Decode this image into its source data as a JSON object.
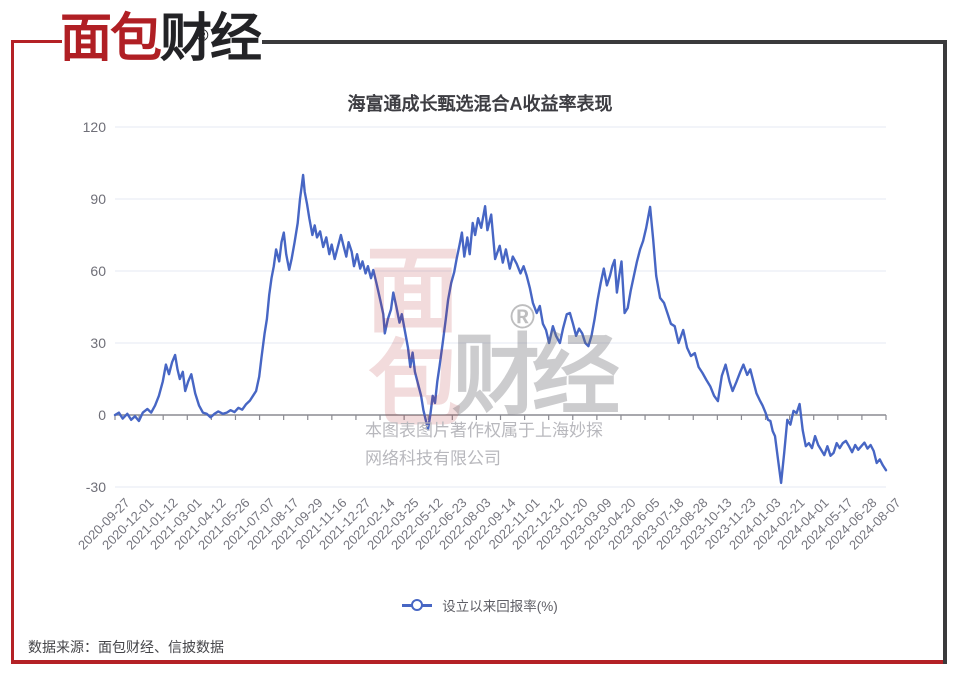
{
  "logo": {
    "text_main": "面包",
    "text_sub": "财经",
    "registered_mark": "®"
  },
  "frame": {
    "accent_red": "#b42126",
    "border_dark": "#3a3a3c"
  },
  "watermark": {
    "logo_top": "面",
    "logo_bottom": "包",
    "logo_right": "财经",
    "registered_mark": "®",
    "copyright_line1": "本图表图片著作权属于上海妙探",
    "copyright_line2": "网络科技有限公司"
  },
  "footer": {
    "source_text": "数据来源：面包财经、信披数据"
  },
  "chart_data": {
    "type": "line",
    "title": "海富通成长甄选混合A收益率表现",
    "legend": {
      "label": "设立以来回报率(%)",
      "position": "bottom"
    },
    "line_color": "#4766c4",
    "grid_color": "#e4e9f3",
    "axis_color": "#8b8b92",
    "grid": true,
    "ylim": [
      -30,
      120
    ],
    "y_ticks": [
      120,
      90,
      60,
      30,
      0,
      -30
    ],
    "x_tick_labels": [
      "2020-09-27",
      "2020-12-01",
      "2021-01-12",
      "2021-03-01",
      "2021-04-12",
      "2021-05-26",
      "2021-07-07",
      "2021-08-17",
      "2021-09-29",
      "2021-11-16",
      "2021-12-27",
      "2022-02-14",
      "2022-03-25",
      "2022-05-12",
      "2022-06-23",
      "2022-08-03",
      "2022-09-14",
      "2022-11-01",
      "2022-12-12",
      "2023-01-20",
      "2023-03-09",
      "2023-04-20",
      "2023-06-05",
      "2023-07-18",
      "2023-08-28",
      "2023-10-13",
      "2023-11-23",
      "2024-01-03",
      "2024-02-21",
      "2024-04-01",
      "2024-05-17",
      "2024-06-28",
      "2024-08-07"
    ],
    "series": [
      {
        "name": "设立以来回报率(%)",
        "x_unit": "fraction_of_axis",
        "points": [
          [
            0.0,
            0
          ],
          [
            0.005,
            1
          ],
          [
            0.01,
            -1.5
          ],
          [
            0.016,
            0.5
          ],
          [
            0.021,
            -2
          ],
          [
            0.026,
            -0.5
          ],
          [
            0.031,
            -2.5
          ],
          [
            0.036,
            1
          ],
          [
            0.042,
            2.5
          ],
          [
            0.047,
            1
          ],
          [
            0.052,
            4
          ],
          [
            0.057,
            8
          ],
          [
            0.062,
            14
          ],
          [
            0.066,
            21
          ],
          [
            0.07,
            17
          ],
          [
            0.074,
            22
          ],
          [
            0.078,
            25
          ],
          [
            0.081,
            19
          ],
          [
            0.084,
            15
          ],
          [
            0.088,
            18
          ],
          [
            0.091,
            10
          ],
          [
            0.095,
            14
          ],
          [
            0.099,
            17
          ],
          [
            0.104,
            9
          ],
          [
            0.109,
            4
          ],
          [
            0.114,
            1
          ],
          [
            0.119,
            0.5
          ],
          [
            0.124,
            -1
          ],
          [
            0.129,
            0.5
          ],
          [
            0.134,
            1.5
          ],
          [
            0.14,
            0.5
          ],
          [
            0.145,
            1
          ],
          [
            0.15,
            2
          ],
          [
            0.155,
            1.2
          ],
          [
            0.16,
            3
          ],
          [
            0.165,
            2.2
          ],
          [
            0.17,
            4.5
          ],
          [
            0.175,
            6
          ],
          [
            0.179,
            8
          ],
          [
            0.183,
            10
          ],
          [
            0.187,
            16
          ],
          [
            0.19,
            24
          ],
          [
            0.194,
            34
          ],
          [
            0.197,
            40
          ],
          [
            0.2,
            50
          ],
          [
            0.203,
            57
          ],
          [
            0.206,
            62
          ],
          [
            0.209,
            69
          ],
          [
            0.213,
            64
          ],
          [
            0.216,
            72
          ],
          [
            0.219,
            76
          ],
          [
            0.222,
            67
          ],
          [
            0.226,
            60.5
          ],
          [
            0.229,
            65
          ],
          [
            0.233,
            72
          ],
          [
            0.237,
            80
          ],
          [
            0.24,
            90
          ],
          [
            0.242,
            95
          ],
          [
            0.244,
            100
          ],
          [
            0.246,
            93
          ],
          [
            0.249,
            88
          ],
          [
            0.252,
            82
          ],
          [
            0.256,
            75
          ],
          [
            0.259,
            79
          ],
          [
            0.262,
            74
          ],
          [
            0.266,
            76.5
          ],
          [
            0.27,
            70
          ],
          [
            0.274,
            74
          ],
          [
            0.278,
            67
          ],
          [
            0.281,
            71
          ],
          [
            0.285,
            65
          ],
          [
            0.289,
            70
          ],
          [
            0.293,
            75
          ],
          [
            0.296,
            71
          ],
          [
            0.3,
            66
          ],
          [
            0.303,
            72
          ],
          [
            0.307,
            68
          ],
          [
            0.31,
            62
          ],
          [
            0.314,
            67
          ],
          [
            0.318,
            61
          ],
          [
            0.321,
            64
          ],
          [
            0.325,
            59
          ],
          [
            0.328,
            62
          ],
          [
            0.332,
            57
          ],
          [
            0.335,
            60.4
          ],
          [
            0.339,
            55
          ],
          [
            0.344,
            48
          ],
          [
            0.348,
            42
          ],
          [
            0.35,
            34
          ],
          [
            0.354,
            40
          ],
          [
            0.358,
            44
          ],
          [
            0.361,
            51
          ],
          [
            0.365,
            45
          ],
          [
            0.369,
            38.5
          ],
          [
            0.372,
            42
          ],
          [
            0.376,
            35
          ],
          [
            0.38,
            28
          ],
          [
            0.383,
            20
          ],
          [
            0.386,
            26
          ],
          [
            0.389,
            18
          ],
          [
            0.393,
            13
          ],
          [
            0.397,
            8
          ],
          [
            0.4,
            2
          ],
          [
            0.403,
            -2
          ],
          [
            0.406,
            -6
          ],
          [
            0.409,
            0
          ],
          [
            0.412,
            8
          ],
          [
            0.415,
            5
          ],
          [
            0.418,
            14
          ],
          [
            0.421,
            20.5
          ],
          [
            0.425,
            30
          ],
          [
            0.429,
            40
          ],
          [
            0.432,
            48
          ],
          [
            0.436,
            55
          ],
          [
            0.44,
            59.5
          ],
          [
            0.443,
            65
          ],
          [
            0.447,
            71
          ],
          [
            0.45,
            76
          ],
          [
            0.453,
            66
          ],
          [
            0.457,
            74
          ],
          [
            0.46,
            67
          ],
          [
            0.464,
            80
          ],
          [
            0.467,
            75
          ],
          [
            0.471,
            82
          ],
          [
            0.475,
            78
          ],
          [
            0.48,
            87
          ],
          [
            0.483,
            77
          ],
          [
            0.488,
            83.5
          ],
          [
            0.493,
            65
          ],
          [
            0.499,
            70.5
          ],
          [
            0.503,
            63.5
          ],
          [
            0.507,
            69
          ],
          [
            0.512,
            61
          ],
          [
            0.516,
            66
          ],
          [
            0.521,
            63
          ],
          [
            0.526,
            59
          ],
          [
            0.53,
            62
          ],
          [
            0.534,
            58
          ],
          [
            0.538,
            53
          ],
          [
            0.542,
            46.7
          ],
          [
            0.547,
            42.5
          ],
          [
            0.551,
            45.4
          ],
          [
            0.555,
            38
          ],
          [
            0.559,
            35.4
          ],
          [
            0.563,
            30
          ],
          [
            0.568,
            37
          ],
          [
            0.572,
            33
          ],
          [
            0.577,
            30
          ],
          [
            0.581,
            36
          ],
          [
            0.586,
            42
          ],
          [
            0.59,
            42.5
          ],
          [
            0.594,
            38
          ],
          [
            0.598,
            33
          ],
          [
            0.602,
            36
          ],
          [
            0.606,
            34
          ],
          [
            0.61,
            30
          ],
          [
            0.614,
            28.7
          ],
          [
            0.618,
            33
          ],
          [
            0.622,
            40
          ],
          [
            0.626,
            48
          ],
          [
            0.63,
            55
          ],
          [
            0.634,
            61
          ],
          [
            0.638,
            54
          ],
          [
            0.642,
            58
          ],
          [
            0.645,
            62
          ],
          [
            0.648,
            64.6
          ],
          [
            0.651,
            51
          ],
          [
            0.654,
            58
          ],
          [
            0.657,
            64
          ],
          [
            0.661,
            42.5
          ],
          [
            0.665,
            44.6
          ],
          [
            0.669,
            52
          ],
          [
            0.673,
            58
          ],
          [
            0.677,
            64
          ],
          [
            0.681,
            69
          ],
          [
            0.685,
            72.5
          ],
          [
            0.689,
            78
          ],
          [
            0.694,
            86.7
          ],
          [
            0.698,
            73
          ],
          [
            0.702,
            58
          ],
          [
            0.707,
            48.8
          ],
          [
            0.712,
            46.7
          ],
          [
            0.717,
            42
          ],
          [
            0.721,
            38
          ],
          [
            0.726,
            37
          ],
          [
            0.731,
            30
          ],
          [
            0.737,
            35.4
          ],
          [
            0.742,
            28
          ],
          [
            0.747,
            24.6
          ],
          [
            0.752,
            25.8
          ],
          [
            0.757,
            20
          ],
          [
            0.762,
            17.5
          ],
          [
            0.767,
            14.6
          ],
          [
            0.772,
            12
          ],
          [
            0.777,
            8
          ],
          [
            0.782,
            5.8
          ],
          [
            0.787,
            16.3
          ],
          [
            0.792,
            21
          ],
          [
            0.797,
            14
          ],
          [
            0.801,
            10
          ],
          [
            0.806,
            13.8
          ],
          [
            0.811,
            18
          ],
          [
            0.815,
            21
          ],
          [
            0.82,
            16.7
          ],
          [
            0.824,
            19
          ],
          [
            0.828,
            14
          ],
          [
            0.832,
            9
          ],
          [
            0.836,
            6.3
          ],
          [
            0.84,
            3.9
          ],
          [
            0.844,
            0.8
          ],
          [
            0.847,
            -2
          ],
          [
            0.85,
            -2.5
          ],
          [
            0.853,
            -6.7
          ],
          [
            0.856,
            -8.8
          ],
          [
            0.86,
            -18.8
          ],
          [
            0.864,
            -28.3
          ],
          [
            0.868,
            -15.8
          ],
          [
            0.872,
            -2
          ],
          [
            0.876,
            -4
          ],
          [
            0.88,
            1.7
          ],
          [
            0.884,
            0.8
          ],
          [
            0.888,
            4.6
          ],
          [
            0.892,
            -6.3
          ],
          [
            0.896,
            -13
          ],
          [
            0.9,
            -11.7
          ],
          [
            0.904,
            -13.8
          ],
          [
            0.908,
            -8.8
          ],
          [
            0.912,
            -12.5
          ],
          [
            0.916,
            -14.6
          ],
          [
            0.92,
            -16.7
          ],
          [
            0.924,
            -13
          ],
          [
            0.928,
            -17
          ],
          [
            0.932,
            -15.8
          ],
          [
            0.936,
            -11.7
          ],
          [
            0.94,
            -13.8
          ],
          [
            0.944,
            -11.7
          ],
          [
            0.948,
            -10.8
          ],
          [
            0.952,
            -13
          ],
          [
            0.956,
            -15.5
          ],
          [
            0.96,
            -12.5
          ],
          [
            0.964,
            -14.5
          ],
          [
            0.968,
            -13
          ],
          [
            0.972,
            -11.5
          ],
          [
            0.976,
            -14
          ],
          [
            0.98,
            -12.5
          ],
          [
            0.984,
            -15
          ],
          [
            0.988,
            -20
          ],
          [
            0.992,
            -18.5
          ],
          [
            0.996,
            -21
          ],
          [
            1.0,
            -23
          ]
        ]
      }
    ]
  }
}
